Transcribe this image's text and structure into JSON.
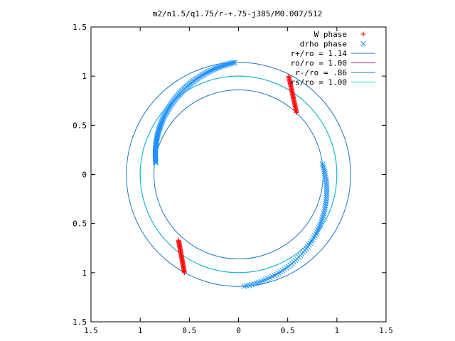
{
  "chart_data": {
    "type": "scatter",
    "title": "m2/n1.5/q1.75/r-+.75-j385/M0.007/512",
    "xlim": [
      -1.5,
      1.5
    ],
    "ylim": [
      -1.5,
      1.5
    ],
    "x_ticks": [
      {
        "value": -1.5,
        "label": "1.5"
      },
      {
        "value": -1.0,
        "label": "1"
      },
      {
        "value": -0.5,
        "label": "0.5"
      },
      {
        "value": 0.0,
        "label": "0"
      },
      {
        "value": 0.5,
        "label": "0.5"
      },
      {
        "value": 1.0,
        "label": "1"
      },
      {
        "value": 1.5,
        "label": "1.5"
      }
    ],
    "y_ticks": [
      {
        "value": 1.5,
        "label": "1.5"
      },
      {
        "value": 1.0,
        "label": "1"
      },
      {
        "value": 0.5,
        "label": "0.5"
      },
      {
        "value": 0.0,
        "label": "0"
      },
      {
        "value": -0.5,
        "label": "0.5"
      },
      {
        "value": -1.0,
        "label": "1"
      },
      {
        "value": -1.5,
        "label": "1.5"
      }
    ],
    "grid": false,
    "legend_position": "top-right",
    "legend": [
      {
        "label": "W phase",
        "kind": "marker",
        "symbol": "plus",
        "color": "#ff0000"
      },
      {
        "label": "drho phase",
        "kind": "marker",
        "symbol": "cross",
        "color": "#1e90ff"
      },
      {
        "label": "r+/ro = 1.14",
        "kind": "line",
        "color": "#1f77c4"
      },
      {
        "label": "ro/ro = 1.00",
        "kind": "line",
        "color": "#8b1a89"
      },
      {
        "label": "r-/ro = .86",
        "kind": "line",
        "color": "#1f77c4"
      },
      {
        "label": "rs/ro = 1.00",
        "kind": "line",
        "color": "#00d0d0"
      }
    ],
    "circles": [
      {
        "name": "r+/ro = 1.14",
        "radius": 1.14,
        "color": "#1f77c4"
      },
      {
        "name": "ro/ro = 1.00",
        "radius": 1.0,
        "color": "#8b1a89"
      },
      {
        "name": "r-/ro = .86",
        "radius": 0.86,
        "color": "#1f77c4"
      },
      {
        "name": "rs/ro = 1.00",
        "radius": 1.0,
        "color": "#00d0d0"
      }
    ],
    "series": [
      {
        "name": "W phase",
        "symbol": "plus",
        "color": "#ff0000",
        "segments": [
          {
            "x_start": 0.51,
            "y_start": 1.0,
            "x_end": 0.59,
            "y_end": 0.63,
            "n": 40
          },
          {
            "x_start": -0.61,
            "y_start": -0.67,
            "x_end": -0.55,
            "y_end": -1.0,
            "n": 40
          }
        ]
      },
      {
        "name": "drho phase",
        "symbol": "cross",
        "color": "#1e90ff",
        "arcs": [
          {
            "radius_start": 1.14,
            "radius_end": 0.85,
            "angle_start_deg": 92,
            "angle_end_deg": 172,
            "n": 120
          },
          {
            "radius_start": 0.86,
            "radius_end": 1.14,
            "angle_start_deg": 7,
            "angle_end_deg": -87,
            "n": 75
          }
        ]
      }
    ]
  }
}
